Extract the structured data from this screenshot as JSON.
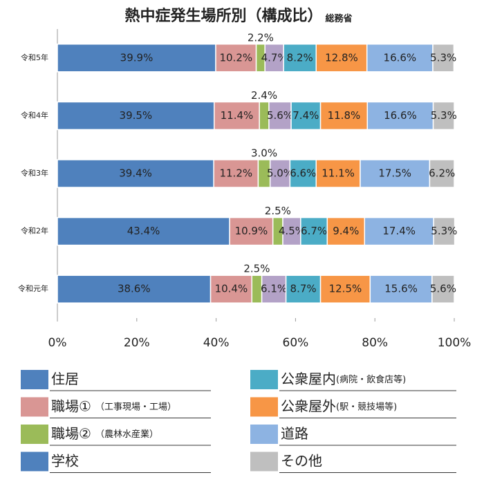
{
  "chart_data": {
    "type": "stacked-bar-horizontal",
    "title": "熱中症発生場所別（構成比）",
    "subtitle": "総務省",
    "categories": [
      "令和5年",
      "令和4年",
      "令和3年",
      "令和2年",
      "令和元年"
    ],
    "xlim": [
      0,
      100
    ],
    "xticks": [
      {
        "value": 0,
        "label": "0%"
      },
      {
        "value": 20,
        "label": "20%"
      },
      {
        "value": 40,
        "label": "40%"
      },
      {
        "value": 60,
        "label": "60%"
      },
      {
        "value": 80,
        "label": "80%"
      },
      {
        "value": 100,
        "label": "100%"
      }
    ],
    "series": [
      {
        "name": "住居",
        "color": "#4f81bd",
        "values": [
          39.9,
          39.5,
          39.4,
          43.4,
          38.6
        ],
        "value_labels": [
          "39.9%",
          "39.5%",
          "39.4%",
          "43.4%",
          "38.6%"
        ]
      },
      {
        "name": "職場①",
        "detail": "（工事現場・工場）",
        "color": "#d99694",
        "values": [
          10.2,
          11.4,
          11.2,
          10.9,
          10.4
        ],
        "value_labels": [
          "10.2%",
          "11.4%",
          "11.2%",
          "10.9%",
          "10.4%"
        ]
      },
      {
        "name": "職場②",
        "detail": "（農林水産業）",
        "color": "#9bbb59",
        "values": [
          2.2,
          2.4,
          3.0,
          2.5,
          2.5
        ],
        "value_labels": [
          "2.2%",
          "2.4%",
          "3.0%",
          "2.5%",
          "2.5%"
        ]
      },
      {
        "name": "学校",
        "color": "#b3a2c7",
        "legend_color": "#4f81bd",
        "values": [
          4.7,
          5.6,
          5.0,
          4.5,
          6.1
        ],
        "value_labels": [
          "4.7%",
          "5.6%",
          "5.0%",
          "4.5%",
          "6.1%"
        ]
      },
      {
        "name": "公衆屋内",
        "detail": "(病院・飲食店等)",
        "color": "#4bacc6",
        "values": [
          8.2,
          7.4,
          6.6,
          6.7,
          8.7
        ],
        "value_labels": [
          "8.2%",
          "7.4%",
          "6.6%",
          "6.7%",
          "8.7%"
        ]
      },
      {
        "name": "公衆屋外",
        "detail": "(駅・競技場等)",
        "color": "#f79646",
        "values": [
          12.8,
          11.8,
          11.1,
          9.4,
          12.5
        ],
        "value_labels": [
          "12.8%",
          "11.8%",
          "11.1%",
          "9.4%",
          "12.5%"
        ]
      },
      {
        "name": "道路",
        "color": "#8db3e2",
        "values": [
          16.6,
          16.6,
          17.5,
          17.4,
          15.6
        ],
        "value_labels": [
          "16.6%",
          "16.6%",
          "17.5%",
          "17.4%",
          "15.6%"
        ]
      },
      {
        "name": "その他",
        "color": "#bfbfbf",
        "values": [
          5.3,
          5.3,
          6.2,
          5.3,
          5.6
        ],
        "value_labels": [
          "5.3%",
          "5.3%",
          "6.2%",
          "5.3%",
          "5.6%"
        ]
      }
    ]
  }
}
